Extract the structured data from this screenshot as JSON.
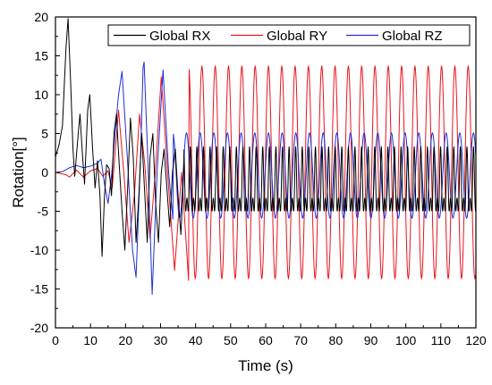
{
  "chart_data": {
    "type": "line",
    "title": "",
    "xlabel": "Time (s)",
    "ylabel": "Rotation[°]",
    "xlim": [
      0,
      120
    ],
    "ylim": [
      -20,
      20
    ],
    "xticks": [
      0,
      10,
      20,
      30,
      40,
      50,
      60,
      70,
      80,
      90,
      100,
      110,
      120
    ],
    "yticks": [
      -20,
      -15,
      -10,
      -5,
      0,
      5,
      10,
      15,
      20
    ],
    "grid": false,
    "legend_position": "top-right",
    "series": [
      {
        "name": "Global RX",
        "color": "#000000",
        "points": [
          [
            0,
            2
          ],
          [
            1,
            3.5
          ],
          [
            2,
            6
          ],
          [
            3,
            16
          ],
          [
            3.6,
            19.8
          ],
          [
            4.3,
            12
          ],
          [
            5,
            3
          ],
          [
            5.5,
            -0.5
          ],
          [
            6.5,
            5
          ],
          [
            7,
            7.5
          ],
          [
            7.6,
            3
          ],
          [
            8.3,
            -1.5
          ],
          [
            9.2,
            8
          ],
          [
            9.8,
            10
          ],
          [
            10.6,
            3
          ],
          [
            11.3,
            -2
          ],
          [
            12,
            1.5
          ],
          [
            12.7,
            -3
          ],
          [
            13.3,
            -10.8
          ],
          [
            14,
            -3
          ],
          [
            14.6,
            1
          ],
          [
            15.3,
            0.5
          ],
          [
            16,
            -3
          ],
          [
            16.7,
            5
          ],
          [
            17.4,
            7.5
          ],
          [
            18.2,
            1
          ],
          [
            19,
            -5
          ],
          [
            19.8,
            -10
          ],
          [
            20.6,
            -2
          ],
          [
            21.4,
            7
          ],
          [
            22.2,
            2
          ],
          [
            23,
            -9
          ],
          [
            23.8,
            -3
          ],
          [
            24.6,
            5
          ],
          [
            25.4,
            -2
          ],
          [
            26.2,
            -9
          ],
          [
            27,
            2
          ],
          [
            27.8,
            5
          ],
          [
            28.6,
            -4
          ],
          [
            29.4,
            -9
          ],
          [
            30.2,
            0
          ],
          [
            31,
            3
          ],
          [
            31.8,
            -2
          ],
          [
            32.6,
            -7
          ],
          [
            33.4,
            0
          ],
          [
            34.2,
            3
          ],
          [
            35,
            -3
          ],
          [
            35.8,
            -8
          ],
          [
            36.6,
            0
          ]
        ],
        "periodic_tail": {
          "from": 36.6,
          "to": 120,
          "period": 1.88,
          "amplitude": 3.3,
          "second_amplitude": 2.2,
          "offset": -2.2
        }
      },
      {
        "name": "Global RY",
        "color": "#e8141c",
        "points": [
          [
            0,
            0
          ],
          [
            3,
            -0.3
          ],
          [
            4,
            -0.6
          ],
          [
            6,
            0.3
          ],
          [
            8,
            -0.6
          ],
          [
            10,
            0.2
          ],
          [
            12,
            0.5
          ],
          [
            13.5,
            -0.5
          ],
          [
            15,
            0.2
          ],
          [
            16.2,
            -2
          ],
          [
            17.3,
            4
          ],
          [
            18,
            8
          ],
          [
            19.5,
            0
          ],
          [
            21,
            -9
          ],
          [
            22.5,
            -3
          ],
          [
            24,
            7.5
          ],
          [
            25.5,
            1
          ],
          [
            27,
            -8.5
          ],
          [
            28.5,
            0
          ],
          [
            30.2,
            12.3
          ],
          [
            32,
            0
          ],
          [
            34,
            -12.6
          ],
          [
            36,
            0
          ],
          [
            38,
            -13.9
          ]
        ],
        "periodic_tail": {
          "from": 38,
          "to": 120,
          "period": 3.8,
          "amplitude": 13.7,
          "offset": 0
        }
      },
      {
        "name": "Global RZ",
        "color": "#1f2fd6",
        "points": [
          [
            0,
            0
          ],
          [
            2,
            0.1
          ],
          [
            4,
            0.6
          ],
          [
            6,
            0.9
          ],
          [
            8,
            0.6
          ],
          [
            10,
            0.8
          ],
          [
            12,
            1.2
          ],
          [
            13,
            1.7
          ],
          [
            14,
            -1.5
          ],
          [
            15,
            -4
          ],
          [
            16,
            -0.5
          ],
          [
            17,
            5
          ],
          [
            18,
            10
          ],
          [
            19,
            13
          ],
          [
            20.5,
            2
          ],
          [
            22,
            -10
          ],
          [
            23,
            -13.5
          ],
          [
            24.3,
            2
          ],
          [
            25,
            13.5
          ],
          [
            25.3,
            14.2
          ],
          [
            26.5,
            0
          ],
          [
            27.6,
            -15.7
          ],
          [
            29,
            0
          ],
          [
            30.7,
            13.2
          ],
          [
            32.3,
            0
          ],
          [
            33.5,
            -6
          ]
        ],
        "periodic_tail": {
          "from": 33.5,
          "to": 120,
          "period": 3.9,
          "amplitude": 5.5,
          "offset": -0.4
        }
      }
    ]
  }
}
